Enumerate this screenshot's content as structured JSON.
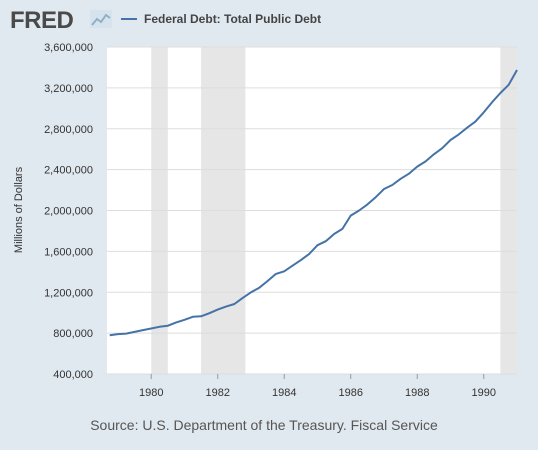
{
  "header": {
    "logo_text": "FRED",
    "legend_label": "Federal Debt: Total Public Debt"
  },
  "source_text": "Source: U.S. Department of the Treasury. Fiscal Service",
  "colors": {
    "background": "#e1e9f0",
    "plot_background": "#ffffff",
    "line": "#4572a7",
    "recession": "#e6e6e6",
    "gridline": "#dddddd",
    "logo_chart_icon": "#a9c4d8"
  },
  "chart_data": {
    "type": "line",
    "title": "Federal Debt: Total Public Debt",
    "ylabel": "Millions of Dollars",
    "xlabel": "",
    "x_tick_labels": [
      "1980",
      "1982",
      "1984",
      "1986",
      "1988",
      "1990"
    ],
    "y_tick_labels": [
      "400,000",
      "800,000",
      "1,200,000",
      "1,600,000",
      "2,000,000",
      "2,400,000",
      "2,800,000",
      "3,200,000",
      "3,600,000"
    ],
    "xlim": [
      1978.67,
      1991.0
    ],
    "ylim": [
      400000,
      3600000
    ],
    "grid": "horizontal",
    "recessions": [
      {
        "start": 1980.0,
        "end": 1980.5
      },
      {
        "start": 1981.5,
        "end": 1982.83
      },
      {
        "start": 1990.5,
        "end": 1991.0
      }
    ],
    "series": [
      {
        "name": "Federal Debt: Total Public Debt",
        "x": [
          1978.75,
          1979.0,
          1979.25,
          1979.5,
          1979.75,
          1980.0,
          1980.25,
          1980.5,
          1980.75,
          1981.0,
          1981.25,
          1981.5,
          1981.75,
          1982.0,
          1982.25,
          1982.5,
          1982.75,
          1983.0,
          1983.25,
          1983.5,
          1983.75,
          1984.0,
          1984.25,
          1984.5,
          1984.75,
          1985.0,
          1985.25,
          1985.5,
          1985.75,
          1986.0,
          1986.25,
          1986.5,
          1986.75,
          1987.0,
          1987.25,
          1987.5,
          1987.75,
          1988.0,
          1988.25,
          1988.5,
          1988.75,
          1989.0,
          1989.25,
          1989.5,
          1989.75,
          1990.0,
          1990.25,
          1990.5,
          1990.75,
          1991.0
        ],
        "values": [
          780000,
          790000,
          795000,
          812000,
          830000,
          845000,
          862000,
          873000,
          905000,
          930000,
          960000,
          965000,
          995000,
          1030000,
          1060000,
          1085000,
          1145000,
          1200000,
          1245000,
          1310000,
          1380000,
          1405000,
          1460000,
          1515000,
          1575000,
          1660000,
          1700000,
          1770000,
          1820000,
          1950000,
          2000000,
          2060000,
          2130000,
          2210000,
          2250000,
          2310000,
          2360000,
          2430000,
          2480000,
          2550000,
          2610000,
          2690000,
          2745000,
          2810000,
          2870000,
          2960000,
          3060000,
          3150000,
          3230000,
          3375000
        ]
      }
    ]
  }
}
